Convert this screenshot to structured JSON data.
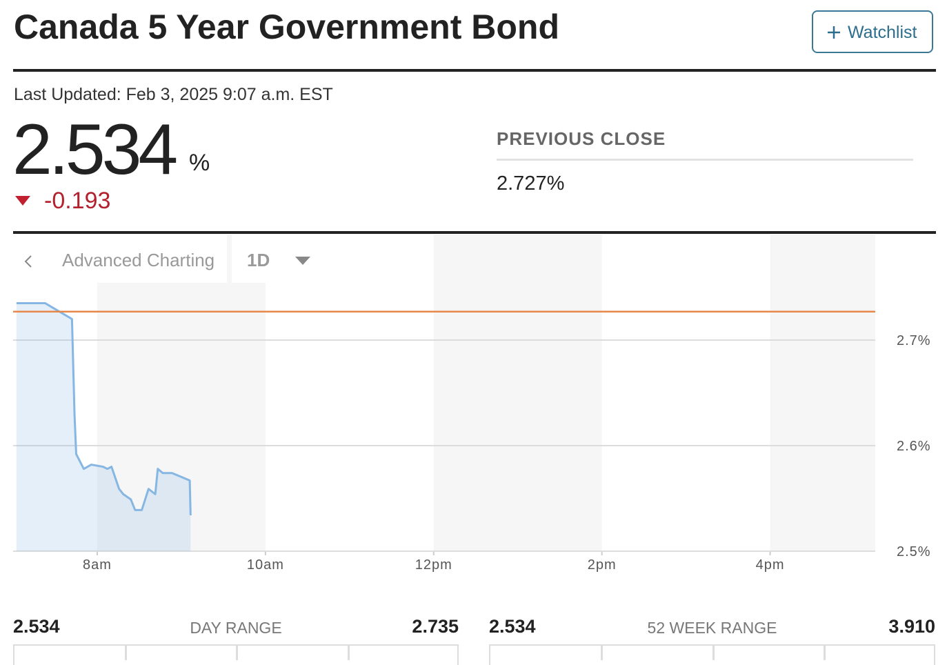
{
  "header": {
    "title": "Canada 5 Year Government Bond",
    "watchlist": "Watchlist"
  },
  "last_updated": "Last Updated: Feb 3, 2025 9:07 a.m. EST",
  "quote": {
    "price": "2.534",
    "unit": "%",
    "change": "-0.193"
  },
  "previous_close": {
    "label": "PREVIOUS CLOSE",
    "value": "2.727%"
  },
  "toolbar": {
    "advanced": "Advanced Charting",
    "range": "1D"
  },
  "chart_data": {
    "type": "line",
    "x": [
      7.04,
      7.38,
      7.7,
      7.73,
      7.75,
      7.84,
      7.93,
      8.07,
      8.12,
      8.17,
      8.26,
      8.31,
      8.4,
      8.45,
      8.53,
      8.61,
      8.69,
      8.72,
      8.78,
      8.89,
      9.1,
      9.11
    ],
    "values": [
      2.735,
      2.735,
      2.72,
      2.63,
      2.592,
      2.578,
      2.582,
      2.58,
      2.578,
      2.58,
      2.559,
      2.554,
      2.549,
      2.539,
      2.539,
      2.559,
      2.554,
      2.578,
      2.574,
      2.574,
      2.567,
      2.534
    ],
    "color": "#86b6e2",
    "previous_close": 2.727,
    "previous_close_color": "#e8874a",
    "xlim": [
      7,
      17.25
    ],
    "xticks": [
      {
        "value": 8,
        "label": "8am"
      },
      {
        "value": 10,
        "label": "10am"
      },
      {
        "value": 12,
        "label": "12pm"
      },
      {
        "value": 14,
        "label": "2pm"
      },
      {
        "value": 16,
        "label": "4pm"
      }
    ],
    "ylim": [
      2.5,
      2.8
    ],
    "yticks": [
      {
        "value": 2.5,
        "label": "2.5%"
      },
      {
        "value": 2.6,
        "label": "2.6%"
      },
      {
        "value": 2.7,
        "label": "2.7%"
      }
    ],
    "grid": true
  },
  "ranges": [
    {
      "low": "2.534",
      "label": "DAY RANGE",
      "high": "2.735"
    },
    {
      "low": "2.534",
      "label": "52 WEEK RANGE",
      "high": "3.910"
    }
  ]
}
